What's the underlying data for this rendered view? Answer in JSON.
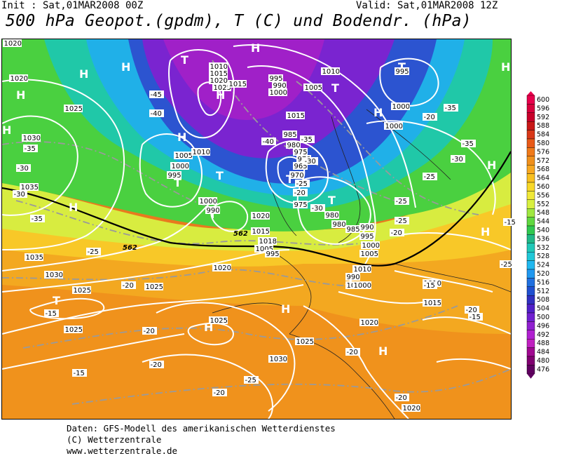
{
  "header": {
    "init": "Init : Sat,01MAR2008 00Z",
    "valid": "Valid: Sat,01MAR2008 12Z",
    "title": "500 hPa Geopot.(gpdm), T (C) und Bodendr. (hPa)"
  },
  "credits": [
    "Daten: GFS-Modell des amerikanischen Wetterdienstes",
    "(C) Wetterzentrale",
    "www.wetterzentrale.de"
  ],
  "legend": {
    "values": [
      "600",
      "596",
      "592",
      "588",
      "584",
      "580",
      "576",
      "572",
      "568",
      "564",
      "560",
      "556",
      "552",
      "548",
      "544",
      "540",
      "536",
      "532",
      "528",
      "524",
      "520",
      "516",
      "512",
      "508",
      "504",
      "500",
      "496",
      "492",
      "488",
      "484",
      "480",
      "476"
    ],
    "colors": [
      "#e8004c",
      "#d8003c",
      "#c8002a",
      "#c81818",
      "#d83818",
      "#e85a18",
      "#f07a1a",
      "#f0901c",
      "#f8a820",
      "#f8c020",
      "#f8d828",
      "#f0e838",
      "#d8f040",
      "#a0e840",
      "#60d840",
      "#30c850",
      "#20b888",
      "#20c8b8",
      "#20c8d8",
      "#20b8f0",
      "#2098f0",
      "#2070e0",
      "#2050d0",
      "#3030c0",
      "#5020c8",
      "#7020d0",
      "#9020d0",
      "#b020d0",
      "#c020c0",
      "#a00890",
      "#800070",
      "#600060"
    ]
  },
  "pressure_labels": [
    "1020",
    "1025",
    "1030",
    "1035",
    "1035",
    "1030",
    "1025",
    "1025",
    "1025",
    "1020",
    "1010",
    "1015",
    "1020",
    "1025",
    "1005",
    "1000",
    "995",
    "1010",
    "1015",
    "995",
    "990",
    "1000",
    "1005",
    "1010",
    "1015",
    "1020",
    "1015",
    "1018",
    "1005",
    "995",
    "1000",
    "990",
    "985",
    "980",
    "975",
    "970",
    "965",
    "970",
    "975",
    "980",
    "980",
    "985",
    "990",
    "995",
    "1000",
    "1005",
    "1010",
    "1015",
    "1020",
    "1025",
    "1030",
    "1025",
    "1020",
    "1020",
    "1015",
    "1010",
    "995",
    "1000",
    "1000",
    "990",
    "1000"
  ],
  "temp_labels": [
    "-45",
    "-40",
    "-35",
    "-30",
    "-35",
    "-30",
    "-25",
    "-20",
    "-15",
    "-20",
    "-15",
    "-20",
    "-20",
    "-40",
    "-35",
    "-30",
    "-25",
    "-20",
    "-25",
    "-20",
    "-15",
    "-25",
    "-20",
    "-20",
    "-15",
    "-15",
    "-20",
    "-25",
    "-30",
    "-35",
    "-35",
    "-30",
    "-25",
    "-25",
    "-20"
  ],
  "pressure_centers": [
    "H",
    "H",
    "H",
    "H",
    "H",
    "T",
    "T",
    "T",
    "T",
    "T",
    "T",
    "H",
    "H",
    "T",
    "H",
    "H",
    "H",
    "H",
    "H",
    "H",
    "H",
    "T",
    "H",
    "T"
  ],
  "contour_labels": [
    "562",
    "562"
  ]
}
